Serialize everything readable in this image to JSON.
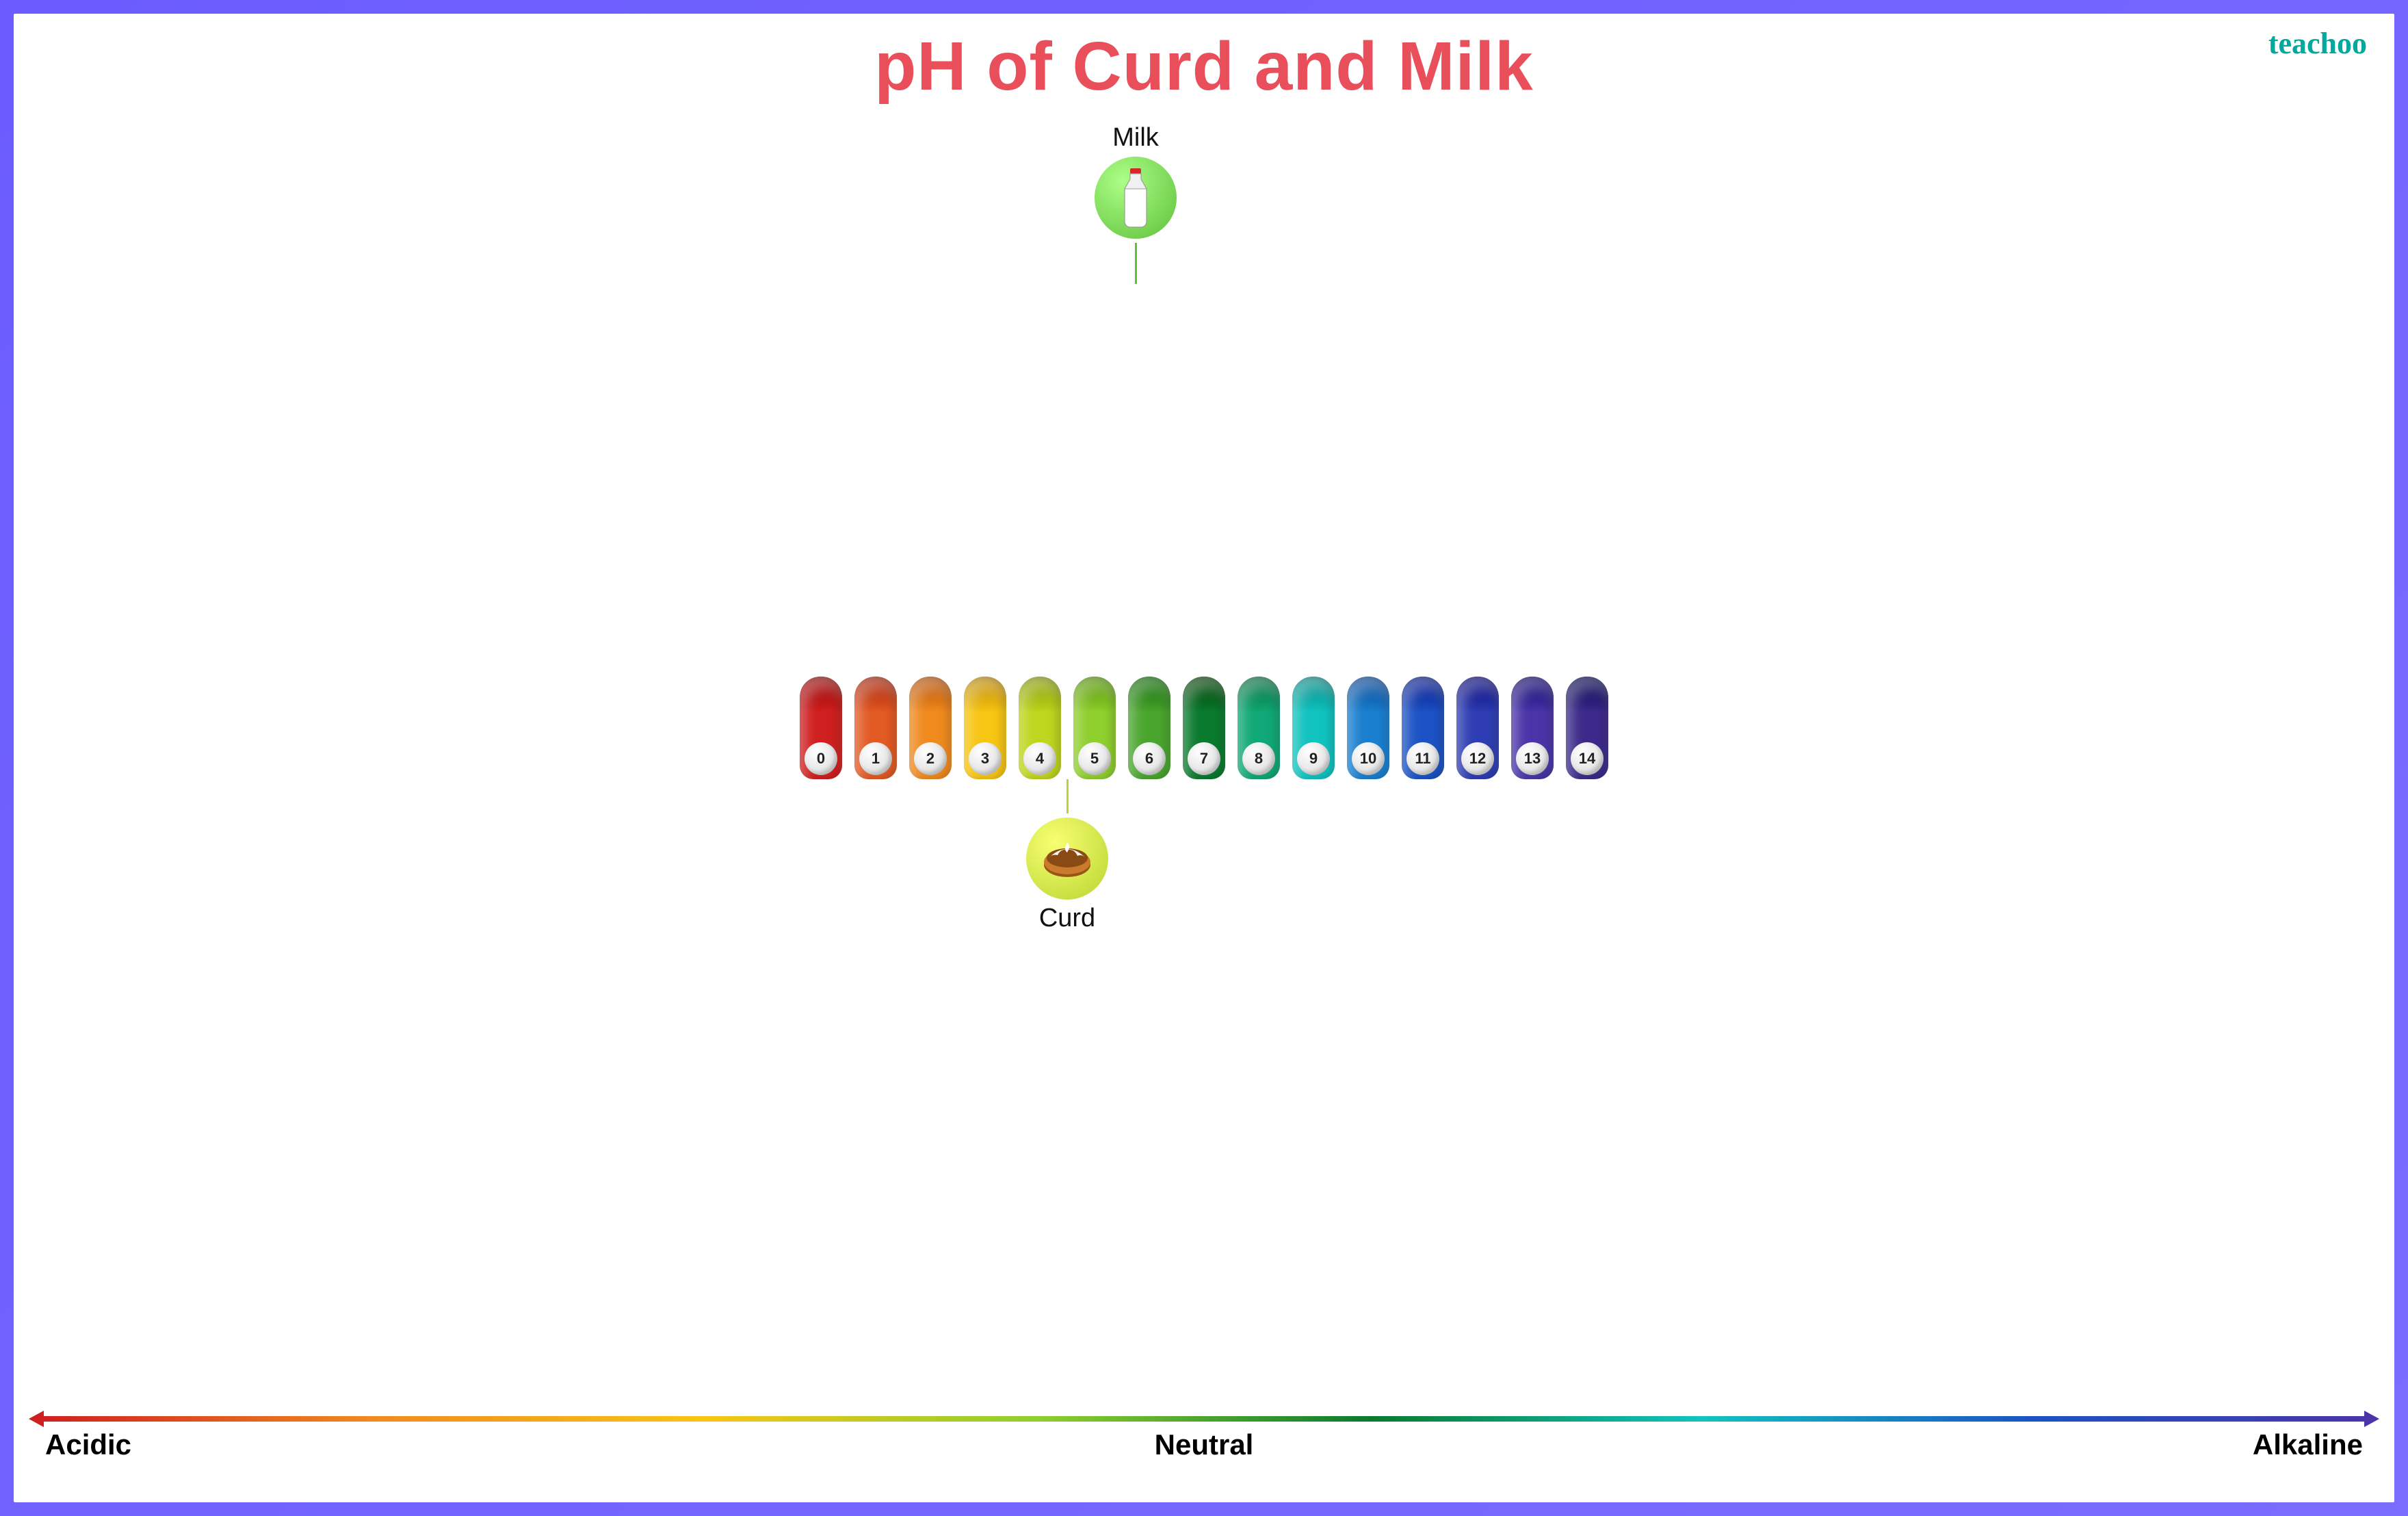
{
  "brand": "teachoo",
  "brand_color": "#00a89d",
  "title": "pH of Curd and Milk",
  "title_color": "#e94f5b",
  "frame_gradient": [
    "#6c5cff",
    "#7a6cff"
  ],
  "background_color": "#ffffff",
  "scale": {
    "min": 0,
    "max": 14,
    "pill_width": 62,
    "pill_height": 150,
    "pill_gap": 18,
    "values": [
      0,
      1,
      2,
      3,
      4,
      5,
      6,
      7,
      8,
      9,
      10,
      11,
      12,
      13,
      14
    ],
    "colors": [
      "#d01f1f",
      "#e25a24",
      "#f08a1f",
      "#f7c514",
      "#bfd51e",
      "#8fcf2e",
      "#4aa52e",
      "#0a7a2e",
      "#10a876",
      "#11c3bf",
      "#1a7fcf",
      "#1c52c4",
      "#2e3db3",
      "#4a35a8",
      "#3c2a8a"
    ],
    "ball_text_color": "#222222",
    "ball_bg_light": "#ffffff",
    "ball_bg_dark": "#bcbcbc"
  },
  "markers": [
    {
      "id": "milk",
      "label": "Milk",
      "position_between": [
        5,
        6
      ],
      "offset_ratio": 0.75,
      "side": "top",
      "bubble_color": "#5fbf3a",
      "stem_color": "#5fbf3a",
      "stem_length": 60,
      "icon": "milk-bottle",
      "icon_colors": {
        "bottle": "#ffffff",
        "cap": "#d42828",
        "outline": "#6b6b6b"
      }
    },
    {
      "id": "curd",
      "label": "Curd",
      "position_between": [
        4,
        5
      ],
      "offset_ratio": 0.5,
      "side": "bottom",
      "bubble_color": "#b8d431",
      "stem_color": "#b8d431",
      "stem_length": 50,
      "icon": "curd-bowl",
      "icon_colors": {
        "bowl": "#c97a2b",
        "bowl_dark": "#9a5418",
        "cream": "#ffffff",
        "cream_shadow": "#e3e3e3"
      }
    }
  ],
  "axis": {
    "labels": {
      "left": "Acidic",
      "center": "Neutral",
      "right": "Alkaline"
    },
    "label_color": "#000000",
    "label_fontsize": 42,
    "gradient": [
      "#d01f1f",
      "#f08a1f",
      "#f7c514",
      "#8fcf2e",
      "#0a7a2e",
      "#11c3bf",
      "#1c52c4",
      "#4a35a8"
    ],
    "arrow_left_color": "#d01f1f",
    "arrow_right_color": "#4a35a8",
    "thickness": 8
  }
}
